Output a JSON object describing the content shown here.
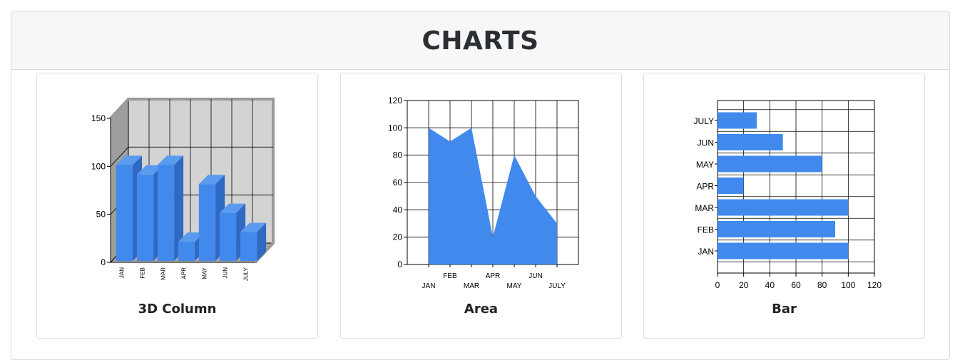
{
  "header": {
    "title": "CHARTS"
  },
  "colors": {
    "series": "#4189ed",
    "series_side": "#2f69c2",
    "series_top": "#5a9bf0",
    "wall": "#d3d3d3",
    "wall_side": "#a8a8a8",
    "grid": "#000000"
  },
  "chart_data": [
    {
      "type": "bar",
      "style": "3d-column",
      "caption": "3D Column",
      "categories": [
        "JAN",
        "FEB",
        "MAR",
        "APR",
        "MAY",
        "JUN",
        "JULY"
      ],
      "values": [
        100,
        90,
        100,
        20,
        80,
        50,
        30
      ],
      "ylim": [
        0,
        150
      ],
      "yticks": [
        "0",
        "50",
        "100",
        "150"
      ],
      "grid": true
    },
    {
      "type": "area",
      "caption": "Area",
      "categories": [
        "JAN",
        "FEB",
        "MAR",
        "APR",
        "MAY",
        "JUN",
        "JULY"
      ],
      "values": [
        100,
        90,
        100,
        20,
        80,
        50,
        30
      ],
      "ylim": [
        0,
        120
      ],
      "yticks": [
        "0",
        "20",
        "40",
        "60",
        "80",
        "100",
        "120"
      ],
      "grid": true
    },
    {
      "type": "bar",
      "orientation": "horizontal",
      "caption": "Bar",
      "categories": [
        "JAN",
        "FEB",
        "MAR",
        "APR",
        "MAY",
        "JUN",
        "JULY"
      ],
      "values": [
        100,
        90,
        100,
        20,
        80,
        50,
        30
      ],
      "xlim": [
        0,
        120
      ],
      "xticks": [
        "0",
        "20",
        "40",
        "60",
        "80",
        "100",
        "120"
      ],
      "grid": true
    }
  ]
}
